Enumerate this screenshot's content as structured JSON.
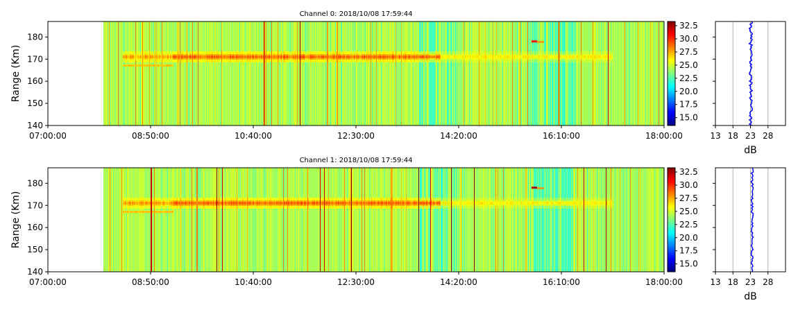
{
  "chart_data": [
    {
      "type": "heatmap",
      "title": "Channel 0: 2018/10/08 17:59:44",
      "ylabel": "Range (Km)",
      "ylim": [
        140,
        187
      ],
      "y_ticks": [
        140,
        150,
        160,
        170,
        180
      ],
      "x_ticks": [
        "07:00:00",
        "08:50:00",
        "10:40:00",
        "12:30:00",
        "14:20:00",
        "16:10:00",
        "18:00:00"
      ],
      "x_range": [
        "07:00:00",
        "18:00:00"
      ],
      "data_start": "08:00:00",
      "colormap": "jet",
      "colorbar": {
        "range": [
          13.5,
          33.3
        ],
        "ticks": [
          "15.0",
          "17.5",
          "20.0",
          "22.5",
          "25.0",
          "27.5",
          "30.0",
          "32.5"
        ]
      },
      "layer": {
        "range_km": 171,
        "start": "08:20:00",
        "strong_until": "14:00:00",
        "end": "17:05:00"
      },
      "profile": {
        "xlabel": "dB",
        "x_ticks": [
          "13",
          "18",
          "23",
          "28"
        ],
        "xlim": [
          13,
          33
        ],
        "mean_db": 23.1
      }
    },
    {
      "type": "heatmap",
      "title": "Channel 1: 2018/10/08 17:59:44",
      "ylabel": "Range (Km)",
      "ylim": [
        140,
        187
      ],
      "y_ticks": [
        140,
        150,
        160,
        170,
        180
      ],
      "x_ticks": [
        "07:00:00",
        "08:50:00",
        "10:40:00",
        "12:30:00",
        "14:20:00",
        "16:10:00",
        "18:00:00"
      ],
      "x_range": [
        "07:00:00",
        "18:00:00"
      ],
      "data_start": "08:00:00",
      "colormap": "jet",
      "colorbar": {
        "range": [
          13.5,
          33.3
        ],
        "ticks": [
          "15.0",
          "17.5",
          "20.0",
          "22.5",
          "25.0",
          "27.5",
          "30.0",
          "32.5"
        ]
      },
      "layer": {
        "range_km": 171,
        "start": "08:20:00",
        "strong_until": "14:00:00",
        "end": "17:05:00"
      },
      "profile": {
        "xlabel": "dB",
        "x_ticks": [
          "13",
          "18",
          "23",
          "28"
        ],
        "xlim": [
          13,
          33
        ],
        "mean_db": 23.5
      }
    }
  ]
}
